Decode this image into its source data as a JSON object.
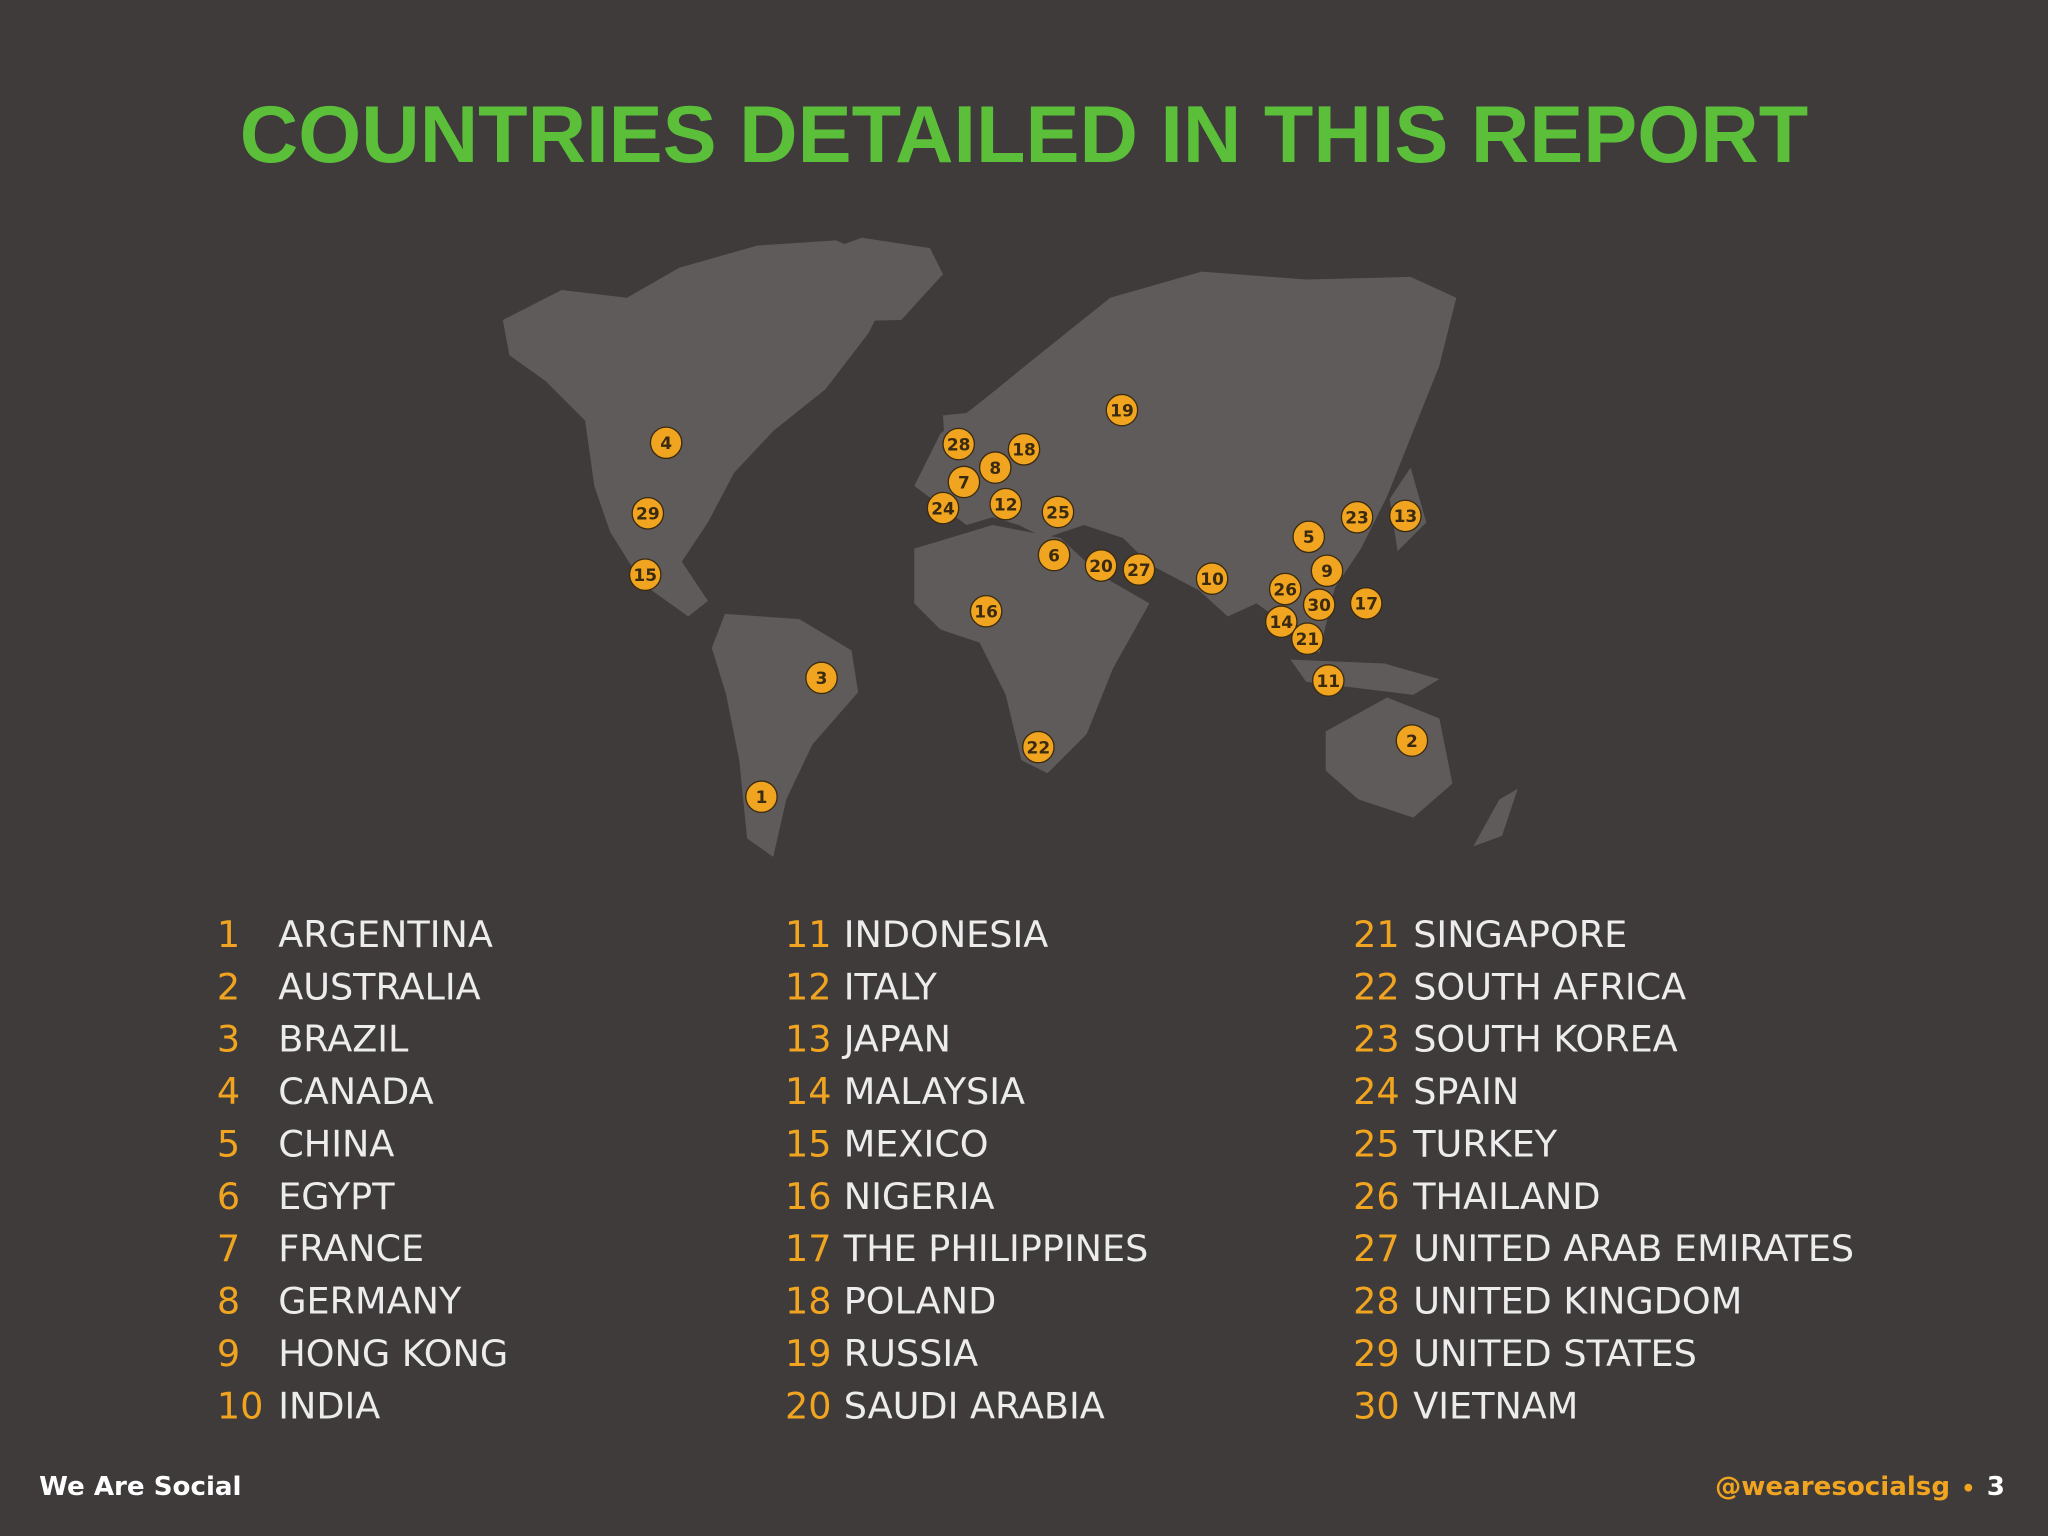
{
  "title": "COUNTRIES DETAILED IN THIS REPORT",
  "countries": [
    {
      "number": 1,
      "name": "ARGENTINA"
    },
    {
      "number": 2,
      "name": "AUSTRALIA"
    },
    {
      "number": 3,
      "name": "BRAZIL"
    },
    {
      "number": 4,
      "name": "CANADA"
    },
    {
      "number": 5,
      "name": "CHINA"
    },
    {
      "number": 6,
      "name": "EGYPT"
    },
    {
      "number": 7,
      "name": "FRANCE"
    },
    {
      "number": 8,
      "name": "GERMANY"
    },
    {
      "number": 9,
      "name": "HONG KONG"
    },
    {
      "number": 10,
      "name": "INDIA"
    },
    {
      "number": 11,
      "name": "INDONESIA"
    },
    {
      "number": 12,
      "name": "ITALY"
    },
    {
      "number": 13,
      "name": "JAPAN"
    },
    {
      "number": 14,
      "name": "MALAYSIA"
    },
    {
      "number": 15,
      "name": "MEXICO"
    },
    {
      "number": 16,
      "name": "NIGERIA"
    },
    {
      "number": 17,
      "name": "THE PHILIPPINES"
    },
    {
      "number": 18,
      "name": "POLAND"
    },
    {
      "number": 19,
      "name": "RUSSIA"
    },
    {
      "number": 20,
      "name": "SAUDI ARABIA"
    },
    {
      "number": 21,
      "name": "SINGAPORE"
    },
    {
      "number": 22,
      "name": "SOUTH AFRICA"
    },
    {
      "number": 23,
      "name": "SOUTH KOREA"
    },
    {
      "number": 24,
      "name": "SPAIN"
    },
    {
      "number": 25,
      "name": "TURKEY"
    },
    {
      "number": 26,
      "name": "THAILAND"
    },
    {
      "number": 27,
      "name": "UNITED ARAB EMIRATES"
    },
    {
      "number": 28,
      "name": "UNITED KINGDOM"
    },
    {
      "number": 29,
      "name": "UNITED STATES"
    },
    {
      "number": 30,
      "name": "VIETNAM"
    }
  ],
  "footer": {
    "brand": "We Are Social",
    "handle": "@wearesocialsg",
    "page": 3
  }
}
